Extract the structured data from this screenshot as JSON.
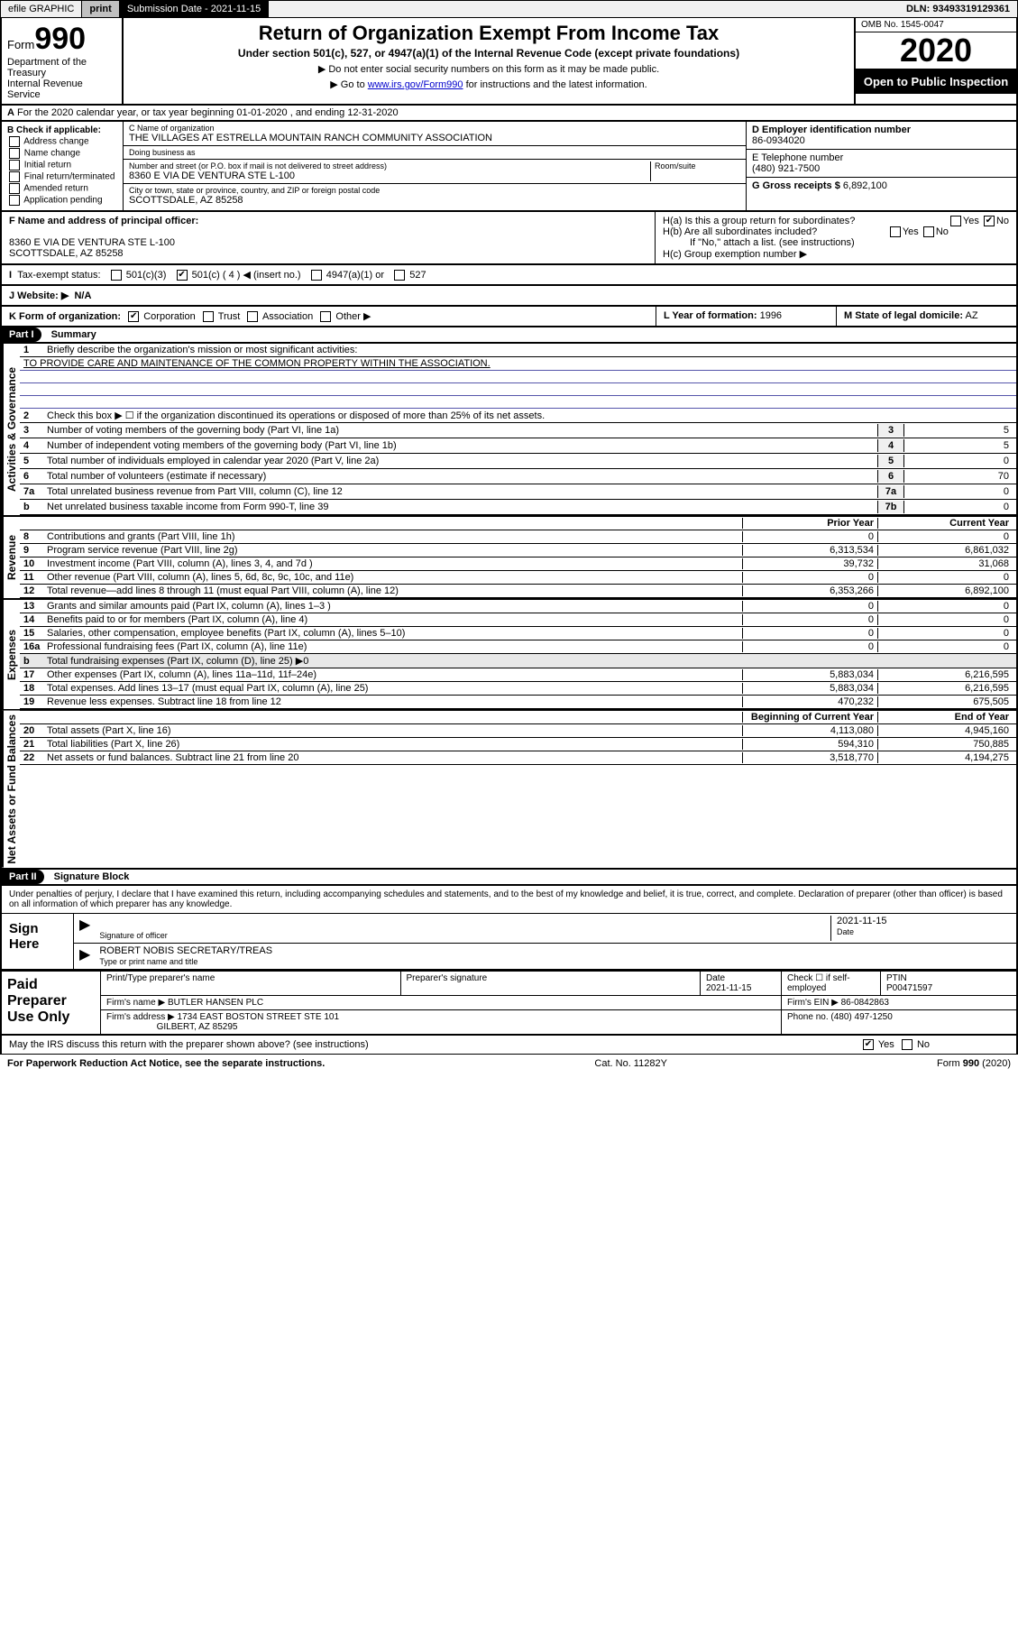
{
  "topbar": {
    "efile": "efile GRAPHIC",
    "print": "print",
    "subdate_label": "Submission Date - 2021-11-15",
    "dln": "DLN: 93493319129361"
  },
  "header": {
    "form_label": "Form",
    "form_num": "990",
    "dept": "Department of the Treasury",
    "irs": "Internal Revenue Service",
    "title": "Return of Organization Exempt From Income Tax",
    "sub": "Under section 501(c), 527, or 4947(a)(1) of the Internal Revenue Code (except private foundations)",
    "note1": "▶ Do not enter social security numbers on this form as it may be made public.",
    "note2_pre": "▶ Go to ",
    "note2_link": "www.irs.gov/Form990",
    "note2_post": " for instructions and the latest information.",
    "omb": "OMB No. 1545-0047",
    "year": "2020",
    "open": "Open to Public Inspection"
  },
  "sectionA": "For the 2020 calendar year, or tax year beginning 01-01-2020   , and ending 12-31-2020",
  "boxB": {
    "title": "B Check if applicable:",
    "opts": [
      "Address change",
      "Name change",
      "Initial return",
      "Final return/terminated",
      "Amended return",
      "Application pending"
    ]
  },
  "boxC": {
    "name_lbl": "C Name of organization",
    "name": "THE VILLAGES AT ESTRELLA MOUNTAIN RANCH COMMUNITY ASSOCIATION",
    "dba_lbl": "Doing business as",
    "dba": "",
    "street_lbl": "Number and street (or P.O. box if mail is not delivered to street address)",
    "room_lbl": "Room/suite",
    "street": "8360 E VIA DE VENTURA STE L-100",
    "city_lbl": "City or town, state or province, country, and ZIP or foreign postal code",
    "city": "SCOTTSDALE, AZ  85258"
  },
  "boxD": {
    "lbl": "D Employer identification number",
    "val": "86-0934020"
  },
  "boxE": {
    "lbl": "E Telephone number",
    "val": "(480) 921-7500"
  },
  "boxG": {
    "lbl": "G Gross receipts $",
    "val": "6,892,100"
  },
  "boxF": {
    "lbl": "F  Name and address of principal officer:",
    "addr1": "8360 E VIA DE VENTURA STE L-100",
    "addr2": "SCOTTSDALE, AZ  85258"
  },
  "boxH": {
    "ha": "H(a)  Is this a group return for subordinates?",
    "ha_no": true,
    "hb": "H(b)  Are all subordinates included?",
    "hb_note": "If \"No,\" attach a list. (see instructions)",
    "hc": "H(c)  Group exemption number ▶"
  },
  "taxI": {
    "lbl": "Tax-exempt status:",
    "opts": [
      "501(c)(3)",
      "501(c) ( 4 ) ◀ (insert no.)",
      "4947(a)(1) or",
      "527"
    ],
    "checked_idx": 1
  },
  "taxJ": {
    "lbl": "J   Website: ▶",
    "val": "N/A"
  },
  "rowK": {
    "k": "K Form of organization:",
    "opts": [
      "Corporation",
      "Trust",
      "Association",
      "Other ▶"
    ],
    "checked_idx": 0,
    "l_lbl": "L Year of formation:",
    "l_val": "1996",
    "m_lbl": "M State of legal domicile:",
    "m_val": "AZ"
  },
  "part1": {
    "hdr": "Part I",
    "title": "Summary",
    "q1": "Briefly describe the organization's mission or most significant activities:",
    "mission": "TO PROVIDE CARE AND MAINTENANCE OF THE COMMON PROPERTY WITHIN THE ASSOCIATION.",
    "q2": "Check this box ▶ ☐  if the organization discontinued its operations or disposed of more than 25% of its net assets.",
    "lines_single": [
      {
        "n": "3",
        "t": "Number of voting members of the governing body (Part VI, line 1a)",
        "box": "3",
        "v": "5"
      },
      {
        "n": "4",
        "t": "Number of independent voting members of the governing body (Part VI, line 1b)",
        "box": "4",
        "v": "5"
      },
      {
        "n": "5",
        "t": "Total number of individuals employed in calendar year 2020 (Part V, line 2a)",
        "box": "5",
        "v": "0"
      },
      {
        "n": "6",
        "t": "Total number of volunteers (estimate if necessary)",
        "box": "6",
        "v": "70"
      },
      {
        "n": "7a",
        "t": "Total unrelated business revenue from Part VIII, column (C), line 12",
        "box": "7a",
        "v": "0"
      },
      {
        "n": "b",
        "t": "Net unrelated business taxable income from Form 990-T, line 39",
        "box": "7b",
        "v": "0"
      }
    ],
    "col_hdrs": {
      "prior": "Prior Year",
      "current": "Current Year"
    },
    "revenue": [
      {
        "n": "8",
        "t": "Contributions and grants (Part VIII, line 1h)",
        "v1": "0",
        "v2": "0"
      },
      {
        "n": "9",
        "t": "Program service revenue (Part VIII, line 2g)",
        "v1": "6,313,534",
        "v2": "6,861,032"
      },
      {
        "n": "10",
        "t": "Investment income (Part VIII, column (A), lines 3, 4, and 7d )",
        "v1": "39,732",
        "v2": "31,068"
      },
      {
        "n": "11",
        "t": "Other revenue (Part VIII, column (A), lines 5, 6d, 8c, 9c, 10c, and 11e)",
        "v1": "0",
        "v2": "0"
      },
      {
        "n": "12",
        "t": "Total revenue—add lines 8 through 11 (must equal Part VIII, column (A), line 12)",
        "v1": "6,353,266",
        "v2": "6,892,100"
      }
    ],
    "expenses": [
      {
        "n": "13",
        "t": "Grants and similar amounts paid (Part IX, column (A), lines 1–3 )",
        "v1": "0",
        "v2": "0"
      },
      {
        "n": "14",
        "t": "Benefits paid to or for members (Part IX, column (A), line 4)",
        "v1": "0",
        "v2": "0"
      },
      {
        "n": "15",
        "t": "Salaries, other compensation, employee benefits (Part IX, column (A), lines 5–10)",
        "v1": "0",
        "v2": "0"
      },
      {
        "n": "16a",
        "t": "Professional fundraising fees (Part IX, column (A), line 11e)",
        "v1": "0",
        "v2": "0"
      },
      {
        "n": "b",
        "t": "Total fundraising expenses (Part IX, column (D), line 25) ▶0",
        "v1": "",
        "v2": "",
        "shade": true
      },
      {
        "n": "17",
        "t": "Other expenses (Part IX, column (A), lines 11a–11d, 11f–24e)",
        "v1": "5,883,034",
        "v2": "6,216,595"
      },
      {
        "n": "18",
        "t": "Total expenses. Add lines 13–17 (must equal Part IX, column (A), line 25)",
        "v1": "5,883,034",
        "v2": "6,216,595"
      },
      {
        "n": "19",
        "t": "Revenue less expenses. Subtract line 18 from line 12",
        "v1": "470,232",
        "v2": "675,505"
      }
    ],
    "net_hdrs": {
      "begin": "Beginning of Current Year",
      "end": "End of Year"
    },
    "net": [
      {
        "n": "20",
        "t": "Total assets (Part X, line 16)",
        "v1": "4,113,080",
        "v2": "4,945,160"
      },
      {
        "n": "21",
        "t": "Total liabilities (Part X, line 26)",
        "v1": "594,310",
        "v2": "750,885"
      },
      {
        "n": "22",
        "t": "Net assets or fund balances. Subtract line 21 from line 20",
        "v1": "3,518,770",
        "v2": "4,194,275"
      }
    ],
    "sidelabels": {
      "gov": "Activities & Governance",
      "rev": "Revenue",
      "exp": "Expenses",
      "net": "Net Assets or Fund Balances"
    }
  },
  "part2": {
    "hdr": "Part II",
    "title": "Signature Block",
    "perjury": "Under penalties of perjury, I declare that I have examined this return, including accompanying schedules and statements, and to the best of my knowledge and belief, it is true, correct, and complete. Declaration of preparer (other than officer) is based on all information of which preparer has any knowledge.",
    "sign_here": "Sign Here",
    "sig_officer": "Signature of officer",
    "date": "2021-11-15",
    "date_lbl": "Date",
    "officer_name": "ROBERT NOBIS  SECRETARY/TREAS",
    "type_name": "Type or print name and title"
  },
  "paid": {
    "lab": "Paid Preparer Use Only",
    "h": [
      "Print/Type preparer's name",
      "Preparer's signature",
      "Date",
      "Check ☐ if self-employed",
      "PTIN"
    ],
    "date": "2021-11-15",
    "ptin": "P00471597",
    "firm_lbl": "Firm's name    ▶",
    "firm": "BUTLER HANSEN PLC",
    "ein_lbl": "Firm's EIN ▶",
    "ein": "86-0842863",
    "addr_lbl": "Firm's address ▶",
    "addr1": "1734 EAST BOSTON STREET STE 101",
    "addr2": "GILBERT, AZ  85295",
    "phone_lbl": "Phone no.",
    "phone": "(480) 497-1250"
  },
  "discuss": {
    "q": "May the IRS discuss this return with the preparer shown above? (see instructions)",
    "yes": true
  },
  "footer": {
    "left": "For Paperwork Reduction Act Notice, see the separate instructions.",
    "mid": "Cat. No. 11282Y",
    "right": "Form 990 (2020)"
  },
  "colors": {
    "link": "#0000cc",
    "black": "#000000",
    "shade": "#e8e8e8"
  }
}
